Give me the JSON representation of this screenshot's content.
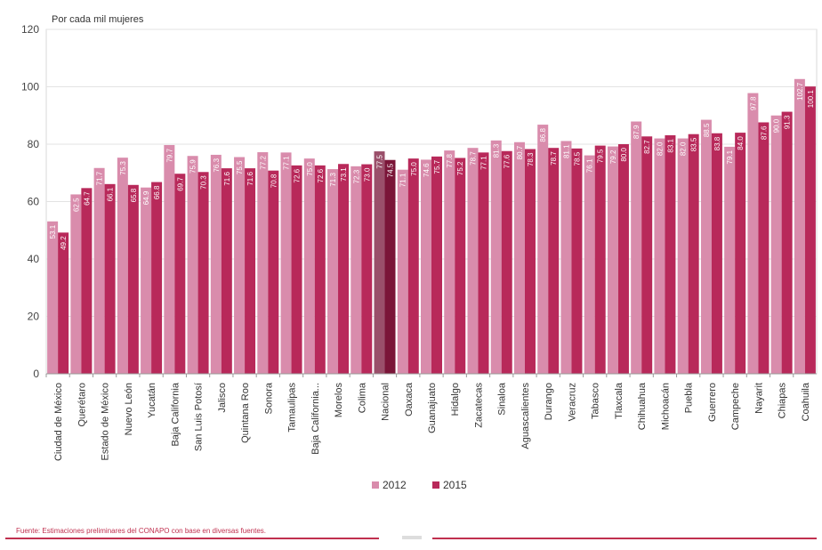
{
  "chart_data": {
    "type": "bar",
    "title": "",
    "unit_label": "Por cada mil mujeres",
    "xlabel": "",
    "ylabel": "",
    "ylim": [
      0,
      120
    ],
    "yticks": [
      0,
      20,
      40,
      60,
      80,
      100,
      120
    ],
    "grid": true,
    "legend_position": "bottom-center",
    "categories": [
      "Ciudad de México",
      "Querétaro",
      "Estado de México",
      "Nuevo León",
      "Yucatán",
      "Baja California",
      "San Luis Potosí",
      "Jalisco",
      "Quintana Roo",
      "Sonora",
      "Tamaulipas",
      "Baja California...",
      "Morelos",
      "Colima",
      "Nacional",
      "Oaxaca",
      "Guanajuato",
      "Hidalgo",
      "Zacatecas",
      "Sinaloa",
      "Aguascalientes",
      "Durango",
      "Veracruz",
      "Tabasco",
      "Tlaxcala",
      "Chihuahua",
      "Michoacán",
      "Puebla",
      "Guerrero",
      "Campeche",
      "Nayarit",
      "Chiapas",
      "Coahuila"
    ],
    "series": [
      {
        "name": "2012",
        "color": "#d98cac",
        "values": [
          53.1,
          62.5,
          71.7,
          75.3,
          64.9,
          79.7,
          75.9,
          76.3,
          75.5,
          77.2,
          77.1,
          75.0,
          71.3,
          72.3,
          77.5,
          71.1,
          74.6,
          77.8,
          78.7,
          81.3,
          80.7,
          86.8,
          81.1,
          76.1,
          79.2,
          87.9,
          82.0,
          82.0,
          88.5,
          79.1,
          97.8,
          90.0,
          102.7
        ]
      },
      {
        "name": "2015",
        "color": "#b8295a",
        "values": [
          49.2,
          64.7,
          66.1,
          65.8,
          66.8,
          69.7,
          70.3,
          71.6,
          71.6,
          70.8,
          72.6,
          72.6,
          73.1,
          73.0,
          74.5,
          75.0,
          75.7,
          75.2,
          77.1,
          77.6,
          78.3,
          78.7,
          78.5,
          79.5,
          80.0,
          82.7,
          83.1,
          83.5,
          83.8,
          84.0,
          87.6,
          91.3,
          100.1
        ]
      }
    ]
  },
  "legend": {
    "label_2012": "2012",
    "label_2015": "2015"
  },
  "footer": {
    "source": "Fuente: Estimaciones preliminares del CONAPO con base en diversas fuentes."
  }
}
